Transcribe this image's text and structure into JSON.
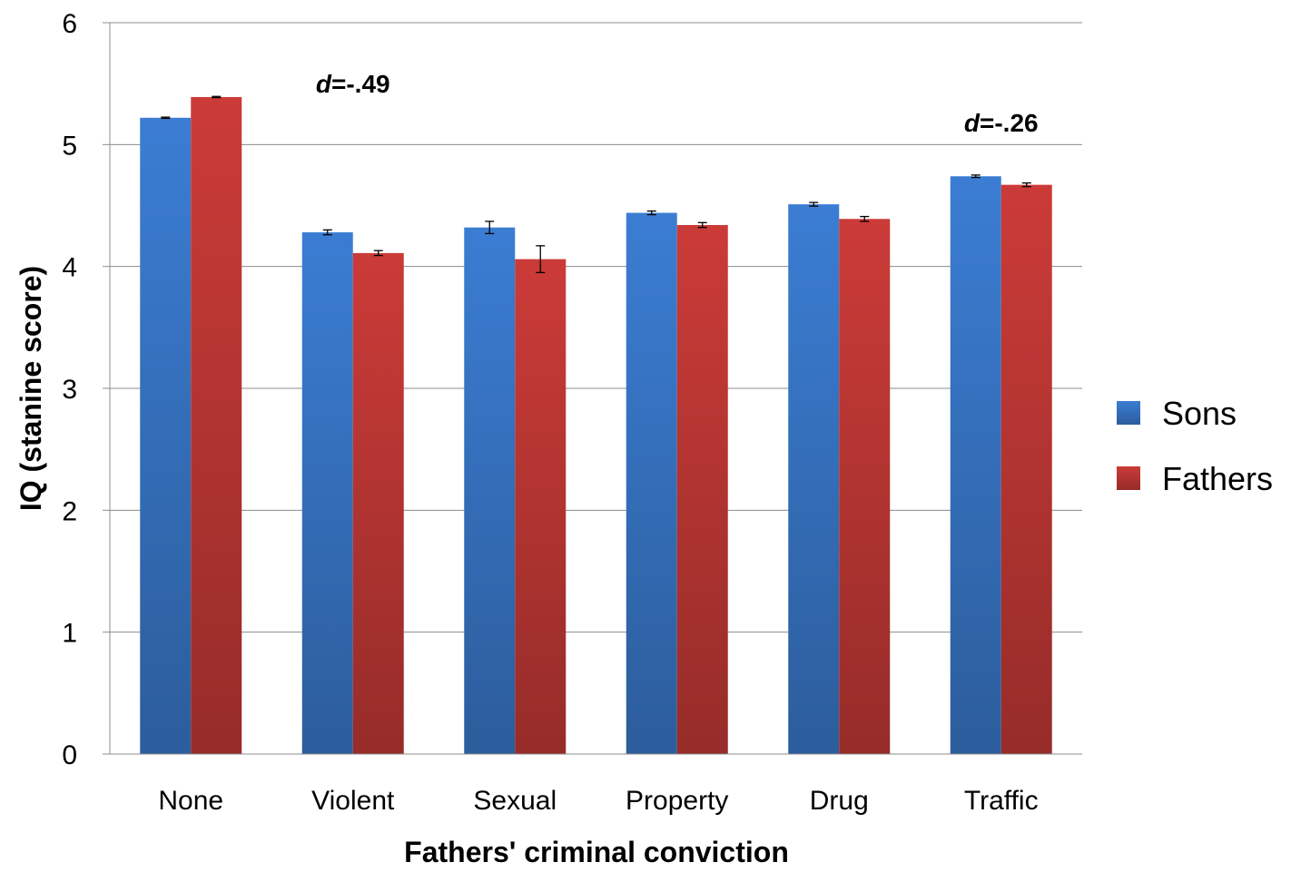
{
  "chart_data": {
    "type": "bar",
    "title": "",
    "xlabel": "Fathers' criminal conviction",
    "ylabel": "IQ (stanine score)",
    "ylim": [
      0,
      6
    ],
    "yticks": [
      0,
      1,
      2,
      3,
      4,
      5,
      6
    ],
    "grid": true,
    "legend_position": "right",
    "categories": [
      "None",
      "Violent",
      "Sexual",
      "Property",
      "Drug",
      "Traffic"
    ],
    "series": [
      {
        "name": "Sons",
        "color": "#3B7DD3",
        "values": [
          5.22,
          4.28,
          4.32,
          4.44,
          4.51,
          4.74
        ],
        "errors": [
          0.005,
          0.02,
          0.05,
          0.015,
          0.015,
          0.01
        ]
      },
      {
        "name": "Fathers",
        "color": "#CB3B38",
        "values": [
          5.39,
          4.11,
          4.06,
          4.34,
          4.39,
          4.67
        ],
        "errors": [
          0.005,
          0.02,
          0.11,
          0.02,
          0.02,
          0.015
        ]
      }
    ],
    "annotations": [
      {
        "category": "Violent",
        "d_label": "d",
        "rest": "=-.49",
        "y": 5.5
      },
      {
        "category": "Traffic",
        "d_label": "d",
        "rest": "=-.26",
        "y": 6.5
      }
    ]
  }
}
